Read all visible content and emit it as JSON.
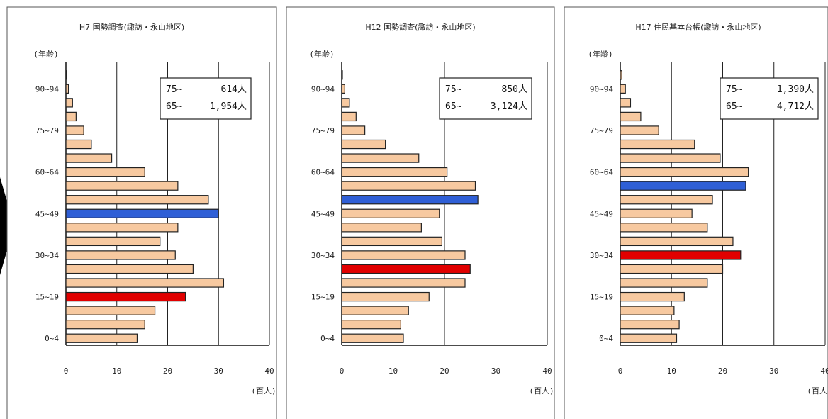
{
  "colors": {
    "bar_default": "#f7c9a0",
    "bar_highlight_blue": "#2f5fd6",
    "bar_highlight_red": "#e10000",
    "bar_border": "#222222",
    "panel_border": "#555555",
    "arrow": "#000000"
  },
  "icons": {
    "arrow": "right-arrow-shape"
  },
  "chart_data": [
    {
      "type": "bar",
      "orientation": "horizontal",
      "title": "H7 国勢調査(諏訪・永山地区)",
      "ylabel": "(年齢)",
      "xlabel": "(百人)",
      "xlim": [
        0,
        40
      ],
      "xticks": [
        "0",
        "10",
        "20",
        "30",
        "40"
      ],
      "y_tick_labels": [
        "90~94",
        "75~79",
        "60~64",
        "45~49",
        "30~34",
        "15~19",
        "0~4"
      ],
      "legend_lines": [
        {
          "label": "75~",
          "value": "614人"
        },
        {
          "label": "65~",
          "value": "1,954人"
        }
      ],
      "categories": [
        "0~4",
        "5~9",
        "10~14",
        "15~19",
        "20~24",
        "25~29",
        "30~34",
        "35~39",
        "40~44",
        "45~49",
        "50~54",
        "55~59",
        "60~64",
        "65~69",
        "70~74",
        "75~79",
        "80~84",
        "85~89",
        "90~94",
        "95~99"
      ],
      "values": [
        14,
        15.5,
        17.5,
        23.5,
        31,
        25,
        21.5,
        18.5,
        22,
        30,
        28,
        22,
        15.5,
        9,
        5,
        3.5,
        2,
        1.3,
        0.5,
        0.1
      ],
      "highlight": {
        "45~49": "blue",
        "15~19": "red"
      }
    },
    {
      "type": "bar",
      "orientation": "horizontal",
      "title": "H12 国勢調査(諏訪・永山地区)",
      "ylabel": "(年齢)",
      "xlabel": "(百人)",
      "xlim": [
        0,
        40
      ],
      "xticks": [
        "0",
        "10",
        "20",
        "30",
        "40"
      ],
      "y_tick_labels": [
        "90~94",
        "75~79",
        "60~64",
        "45~49",
        "30~34",
        "15~19",
        "0~4"
      ],
      "legend_lines": [
        {
          "label": "75~",
          "value": "850人"
        },
        {
          "label": "65~",
          "value": "3,124人"
        }
      ],
      "categories": [
        "0~4",
        "5~9",
        "10~14",
        "15~19",
        "20~24",
        "25~29",
        "30~34",
        "35~39",
        "40~44",
        "45~49",
        "50~54",
        "55~59",
        "60~64",
        "65~69",
        "70~74",
        "75~79",
        "80~84",
        "85~89",
        "90~94",
        "95~99"
      ],
      "values": [
        12,
        11.5,
        13,
        17,
        24,
        25,
        24,
        19.5,
        15.5,
        19,
        26.5,
        26,
        20.5,
        15,
        8.5,
        4.5,
        2.8,
        1.5,
        0.6,
        0.1
      ],
      "highlight": {
        "50~54": "blue",
        "25~29": "red"
      }
    },
    {
      "type": "bar",
      "orientation": "horizontal",
      "title": "H17 住民基本台帳(諏訪・永山地区)",
      "ylabel": "(年齢)",
      "xlabel": "(百人)",
      "xlim": [
        0,
        40
      ],
      "xticks": [
        "0",
        "10",
        "20",
        "30",
        "40"
      ],
      "y_tick_labels": [
        "90~94",
        "75~79",
        "60~64",
        "45~49",
        "30~34",
        "15~19",
        "0~4"
      ],
      "legend_lines": [
        {
          "label": "75~",
          "value": "1,390人"
        },
        {
          "label": "65~",
          "value": "4,712人"
        }
      ],
      "categories": [
        "0~4",
        "5~9",
        "10~14",
        "15~19",
        "20~24",
        "25~29",
        "30~34",
        "35~39",
        "40~44",
        "45~49",
        "50~54",
        "55~59",
        "60~64",
        "65~69",
        "70~74",
        "75~79",
        "80~84",
        "85~89",
        "90~94",
        "95~99"
      ],
      "values": [
        11,
        11.5,
        10.5,
        12.5,
        17,
        20,
        23.5,
        22,
        17,
        14,
        18,
        24.5,
        25,
        19.5,
        14.5,
        7.5,
        4,
        2,
        1,
        0.3
      ],
      "highlight": {
        "55~59": "blue",
        "30~34": "red"
      }
    }
  ]
}
